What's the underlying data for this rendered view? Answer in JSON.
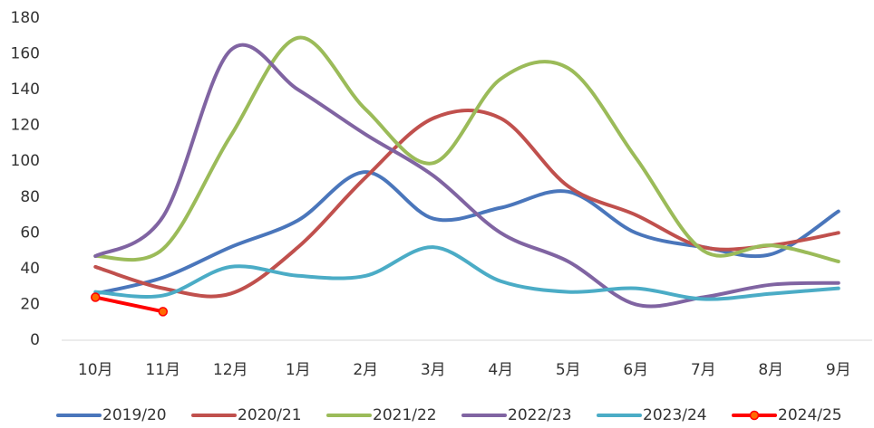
{
  "chart_data": {
    "type": "line",
    "categories": [
      "10月",
      "11月",
      "12月",
      "1月",
      "2月",
      "3月",
      "4月",
      "5月",
      "6月",
      "7月",
      "8月",
      "9月"
    ],
    "series": [
      {
        "name": "2019/20",
        "color": "#4a76bb",
        "values": [
          26,
          35,
          52,
          67,
          94,
          68,
          74,
          83,
          60,
          52,
          48,
          72
        ]
      },
      {
        "name": "2020/21",
        "color": "#c0504d",
        "values": [
          41,
          29,
          26,
          52,
          91,
          124,
          124,
          86,
          70,
          52,
          53,
          60
        ]
      },
      {
        "name": "2021/22",
        "color": "#9bbb59",
        "values": [
          47,
          51,
          114,
          169,
          129,
          99,
          146,
          152,
          102,
          50,
          53,
          44
        ]
      },
      {
        "name": "2022/23",
        "color": "#8064a2",
        "values": [
          47,
          69,
          162,
          140,
          115,
          92,
          60,
          44,
          20,
          24,
          31,
          32
        ]
      },
      {
        "name": "2023/24",
        "color": "#4bacc6",
        "values": [
          27,
          25,
          41,
          36,
          36,
          52,
          33,
          27,
          29,
          23,
          26,
          29
        ]
      },
      {
        "name": "2024/25",
        "color": "#ff0000",
        "markers": true,
        "values": [
          24,
          16,
          null,
          null,
          null,
          null,
          null,
          null,
          null,
          null,
          null,
          null
        ]
      }
    ],
    "ylim": [
      0,
      180
    ],
    "yticks": [
      0,
      20,
      40,
      60,
      80,
      100,
      120,
      140,
      160,
      180
    ],
    "grid": false,
    "smooth": true,
    "legend": "bottom"
  }
}
